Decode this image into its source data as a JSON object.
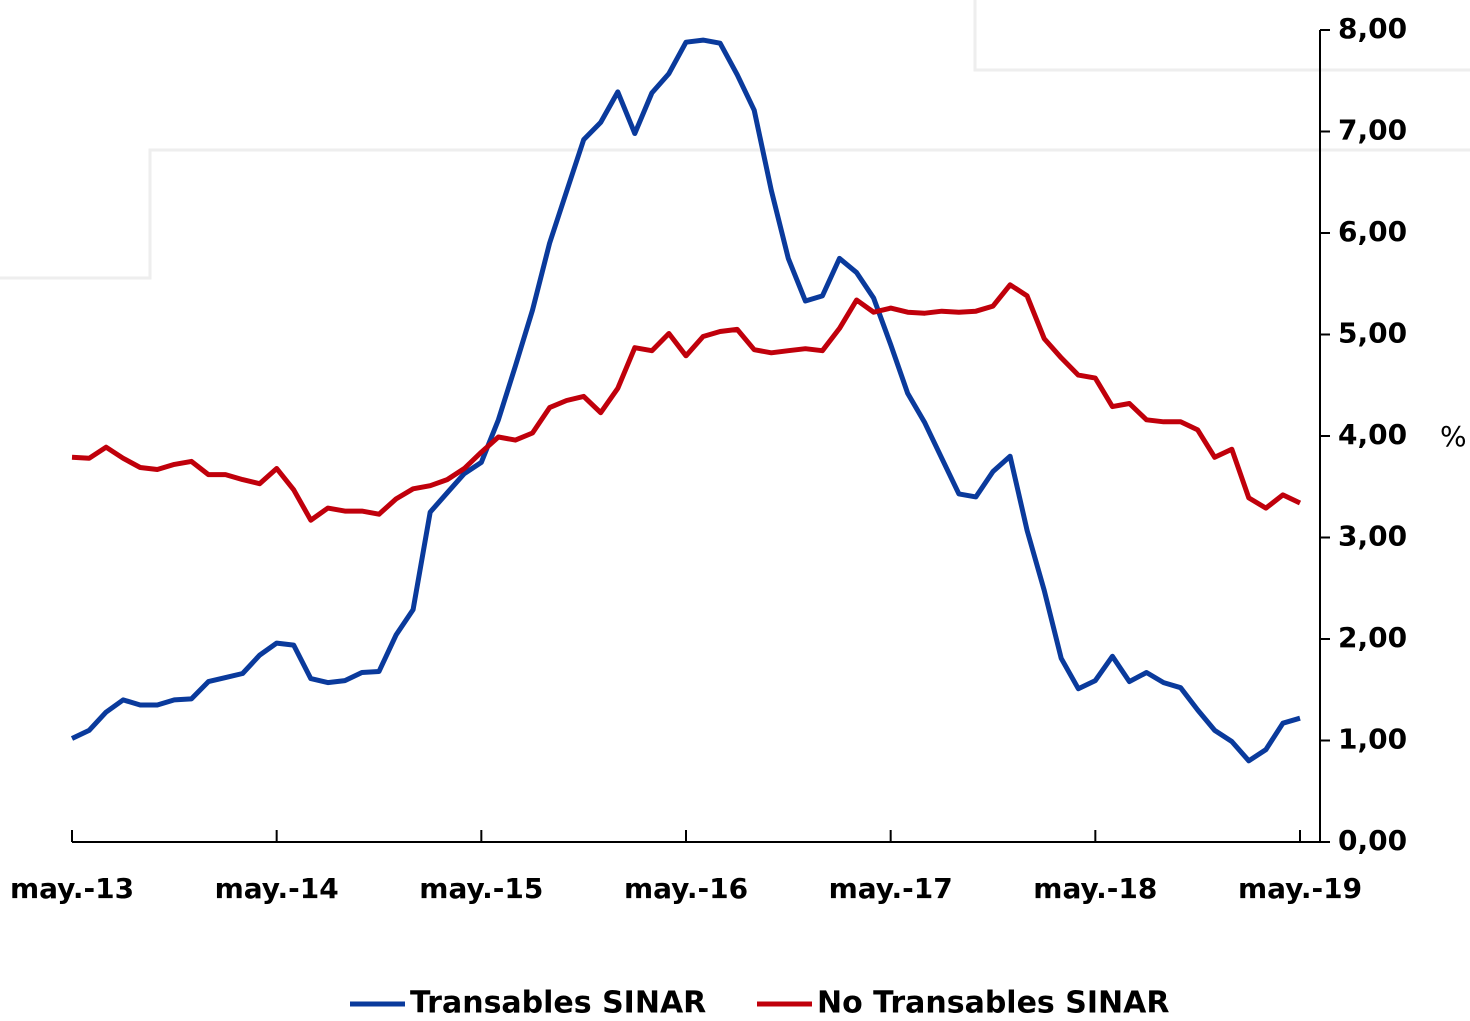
{
  "chart_data": {
    "type": "line",
    "categories": [
      "may.-13",
      null,
      null,
      null,
      null,
      null,
      null,
      null,
      null,
      null,
      null,
      null,
      "may.-14",
      null,
      null,
      null,
      null,
      null,
      null,
      null,
      null,
      null,
      null,
      null,
      "may.-15",
      null,
      null,
      null,
      null,
      null,
      null,
      null,
      null,
      null,
      null,
      null,
      "may.-16",
      null,
      null,
      null,
      null,
      null,
      null,
      null,
      null,
      null,
      null,
      null,
      "may.-17",
      null,
      null,
      null,
      null,
      null,
      null,
      null,
      null,
      null,
      null,
      null,
      "may.-18",
      null,
      null,
      null,
      null,
      null,
      null,
      null,
      null,
      null,
      null,
      null,
      "may.-19"
    ],
    "series": [
      {
        "name": "Transables SINAR",
        "color": "#0a3a9c",
        "values": [
          1.02,
          1.1,
          1.28,
          1.4,
          1.35,
          1.35,
          1.4,
          1.41,
          1.58,
          1.62,
          1.66,
          1.84,
          1.96,
          1.94,
          1.61,
          1.57,
          1.59,
          1.67,
          1.68,
          2.04,
          2.29,
          3.25,
          3.44,
          3.63,
          3.74,
          4.16,
          4.69,
          5.24,
          5.9,
          6.41,
          6.92,
          7.09,
          7.39,
          6.98,
          7.38,
          7.57,
          7.88,
          7.9,
          7.87,
          7.56,
          7.21,
          6.42,
          5.75,
          5.33,
          5.38,
          5.75,
          5.61,
          5.36,
          4.9,
          4.42,
          4.13,
          3.78,
          3.43,
          3.4,
          3.65,
          3.8,
          3.07,
          2.48,
          1.81,
          1.51,
          1.59,
          1.83,
          1.58,
          1.67,
          1.57,
          1.52,
          1.3,
          1.1,
          0.99,
          0.8,
          0.91,
          1.17,
          1.22
        ]
      },
      {
        "name": "No Transables SINAR",
        "color": "#c0000b",
        "values": [
          3.79,
          3.78,
          3.89,
          3.78,
          3.69,
          3.67,
          3.72,
          3.75,
          3.62,
          3.62,
          3.57,
          3.53,
          3.68,
          3.47,
          3.17,
          3.29,
          3.26,
          3.26,
          3.23,
          3.38,
          3.48,
          3.51,
          3.57,
          3.68,
          3.84,
          3.99,
          3.96,
          4.03,
          4.28,
          4.35,
          4.39,
          4.23,
          4.47,
          4.87,
          4.84,
          5.01,
          4.79,
          4.98,
          5.03,
          5.05,
          4.85,
          4.82,
          4.84,
          4.86,
          4.84,
          5.06,
          5.34,
          5.22,
          5.26,
          5.22,
          5.21,
          5.23,
          5.22,
          5.23,
          5.28,
          5.49,
          5.38,
          4.96,
          4.77,
          4.6,
          4.57,
          4.29,
          4.32,
          4.16,
          4.14,
          4.14,
          4.06,
          3.79,
          3.87,
          3.39,
          3.29,
          3.42,
          3.34
        ]
      }
    ],
    "y_label": "%",
    "ylim": [
      0,
      8
    ],
    "yticks": [
      {
        "value": 0,
        "label": "0,00"
      },
      {
        "value": 1,
        "label": "1,00"
      },
      {
        "value": 2,
        "label": "2,00"
      },
      {
        "value": 3,
        "label": "3,00"
      },
      {
        "value": 4,
        "label": "4,00"
      },
      {
        "value": 5,
        "label": "5,00"
      },
      {
        "value": 6,
        "label": "6,00"
      },
      {
        "value": 7,
        "label": "7,00"
      },
      {
        "value": 8,
        "label": "8,00"
      }
    ],
    "grid": false,
    "legend": "bottom"
  }
}
